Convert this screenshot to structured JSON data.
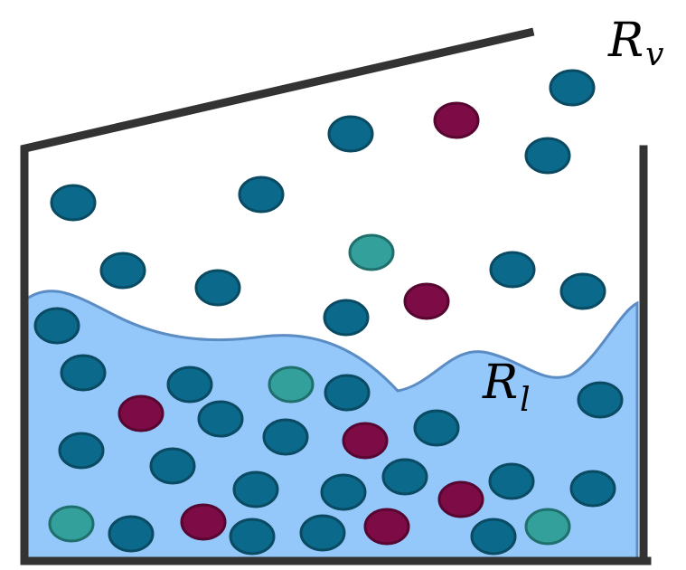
{
  "labels": {
    "vapor": {
      "symbol": "R",
      "subscript": "v"
    },
    "liquid": {
      "symbol": "R",
      "subscript": "l"
    }
  }
}
